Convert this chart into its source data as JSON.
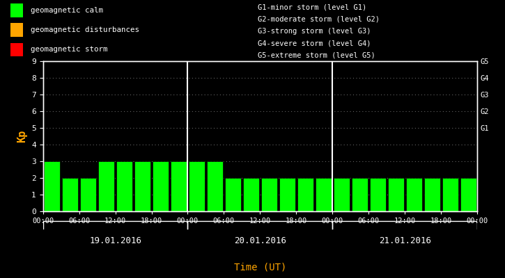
{
  "bg_color": "#000000",
  "bar_color": "#00ff00",
  "bar_color_orange": "#ffa500",
  "bar_color_red": "#ff0000",
  "text_color": "#ffffff",
  "kp_label_color": "#ffa500",
  "xlabel_color": "#ffa500",
  "days": [
    "19.01.2016",
    "20.01.2016",
    "21.01.2016"
  ],
  "kp_values": [
    3,
    2,
    2,
    3,
    3,
    3,
    3,
    3,
    3,
    3,
    2,
    2,
    2,
    2,
    2,
    2,
    2,
    2,
    2,
    2,
    2,
    2,
    2,
    2
  ],
  "ylim": [
    0,
    9
  ],
  "yticks": [
    0,
    1,
    2,
    3,
    4,
    5,
    6,
    7,
    8,
    9
  ],
  "right_labels": [
    "G5",
    "G4",
    "G3",
    "G2",
    "G1"
  ],
  "right_label_yvals": [
    9,
    8,
    7,
    6,
    5
  ],
  "g_levels_text": [
    "G1-minor storm (level G1)",
    "G2-moderate storm (level G2)",
    "G3-strong storm (level G3)",
    "G4-severe storm (level G4)",
    "G5-extreme storm (level G5)"
  ],
  "legend_labels": [
    "geomagnetic calm",
    "geomagnetic disturbances",
    "geomagnetic storm"
  ],
  "legend_colors": [
    "#00ff00",
    "#ffa500",
    "#ff0000"
  ],
  "ylabel": "Kp",
  "xlabel": "Time (UT)",
  "separator_color": "#ffffff",
  "grid_color": "#ffffff",
  "grid_alpha": 0.4
}
